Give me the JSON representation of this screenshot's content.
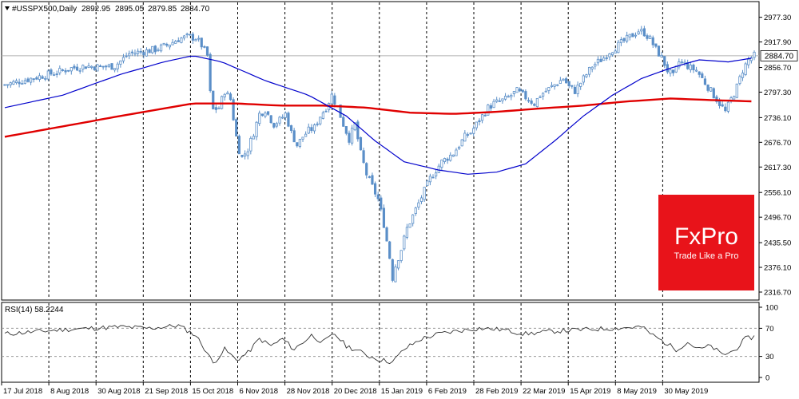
{
  "chart_data": [
    {
      "type": "candlestick",
      "header": {
        "symbol": "#USSPX500,Daily",
        "open": "2892.95",
        "high": "2895.05",
        "low": "2879.85",
        "close": "2884.70"
      },
      "current_price_label": "2884.70",
      "ylim": [
        2316.7,
        2997.7
      ],
      "yticks": [
        "2977.30",
        "2917.90",
        "2856.70",
        "2797.30",
        "2736.10",
        "2676.70",
        "2617.30",
        "2556.10",
        "2496.70",
        "2435.50",
        "2376.10",
        "2316.70"
      ],
      "xticks": [
        "17 Jul 2018",
        "8 Aug 2018",
        "30 Aug 2018",
        "21 Sep 2018",
        "15 Oct 2018",
        "6 Nov 2018",
        "28 Nov 2018",
        "20 Dec 2018",
        "15 Jan 2019",
        "6 Feb 2019",
        "28 Feb 2019",
        "22 Mar 2019",
        "15 Apr 2019",
        "8 May 2019",
        "30 May 2019"
      ],
      "close_path": [
        [
          0,
          2815
        ],
        [
          6,
          2825
        ],
        [
          12,
          2835
        ],
        [
          18,
          2845
        ],
        [
          23,
          2855
        ],
        [
          28,
          2860
        ],
        [
          33,
          2858
        ],
        [
          38,
          2860
        ],
        [
          43,
          2890
        ],
        [
          48,
          2895
        ],
        [
          52,
          2900
        ],
        [
          56,
          2910
        ],
        [
          60,
          2925
        ],
        [
          63,
          2930
        ],
        [
          66,
          2928
        ],
        [
          68,
          2910
        ],
        [
          70,
          2885
        ],
        [
          71,
          2795
        ],
        [
          72,
          2755
        ],
        [
          74,
          2760
        ],
        [
          76,
          2800
        ],
        [
          78,
          2780
        ],
        [
          80,
          2690
        ],
        [
          81,
          2658
        ],
        [
          82,
          2640
        ],
        [
          84,
          2660
        ],
        [
          86,
          2700
        ],
        [
          88,
          2745
        ],
        [
          90,
          2755
        ],
        [
          93,
          2720
        ],
        [
          95,
          2730
        ],
        [
          97,
          2745
        ],
        [
          99,
          2700
        ],
        [
          101,
          2670
        ],
        [
          103,
          2690
        ],
        [
          105,
          2705
        ],
        [
          107,
          2712
        ],
        [
          109,
          2740
        ],
        [
          111,
          2760
        ],
        [
          113,
          2790
        ],
        [
          115,
          2760
        ],
        [
          117,
          2720
        ],
        [
          119,
          2685
        ],
        [
          121,
          2720
        ],
        [
          123,
          2650
        ],
        [
          125,
          2600
        ],
        [
          127,
          2570
        ],
        [
          129,
          2540
        ],
        [
          131,
          2480
        ],
        [
          132,
          2440
        ],
        [
          133,
          2400
        ],
        [
          134,
          2351
        ],
        [
          135,
          2380
        ],
        [
          137,
          2420
        ],
        [
          139,
          2470
        ],
        [
          141,
          2500
        ],
        [
          143,
          2530
        ],
        [
          145,
          2560
        ],
        [
          147,
          2590
        ],
        [
          149,
          2610
        ],
        [
          151,
          2630
        ],
        [
          153,
          2640
        ],
        [
          155,
          2650
        ],
        [
          157,
          2670
        ],
        [
          159,
          2690
        ],
        [
          161,
          2700
        ],
        [
          163,
          2720
        ],
        [
          165,
          2740
        ],
        [
          167,
          2760
        ],
        [
          169,
          2770
        ],
        [
          171,
          2775
        ],
        [
          173,
          2780
        ],
        [
          175,
          2790
        ],
        [
          177,
          2800
        ],
        [
          179,
          2790
        ],
        [
          181,
          2780
        ],
        [
          183,
          2770
        ],
        [
          185,
          2790
        ],
        [
          187,
          2800
        ],
        [
          189,
          2810
        ],
        [
          191,
          2820
        ],
        [
          193,
          2830
        ],
        [
          195,
          2810
        ],
        [
          197,
          2800
        ],
        [
          199,
          2820
        ],
        [
          201,
          2840
        ],
        [
          203,
          2860
        ],
        [
          205,
          2870
        ],
        [
          207,
          2880
        ],
        [
          209,
          2895
        ],
        [
          211,
          2905
        ],
        [
          213,
          2915
        ],
        [
          215,
          2925
        ],
        [
          217,
          2935
        ],
        [
          219,
          2945
        ],
        [
          221,
          2940
        ],
        [
          223,
          2925
        ],
        [
          225,
          2900
        ],
        [
          227,
          2880
        ],
        [
          229,
          2850
        ],
        [
          231,
          2835
        ],
        [
          233,
          2870
        ],
        [
          235,
          2865
        ],
        [
          237,
          2855
        ],
        [
          239,
          2850
        ],
        [
          241,
          2830
        ],
        [
          243,
          2810
        ],
        [
          245,
          2790
        ],
        [
          247,
          2770
        ],
        [
          249,
          2750
        ],
        [
          251,
          2780
        ],
        [
          253,
          2810
        ],
        [
          255,
          2850
        ],
        [
          257,
          2875
        ],
        [
          259,
          2885
        ]
      ],
      "ma_blue": [
        [
          0,
          2760
        ],
        [
          20,
          2790
        ],
        [
          40,
          2840
        ],
        [
          55,
          2870
        ],
        [
          65,
          2885
        ],
        [
          75,
          2870
        ],
        [
          90,
          2825
        ],
        [
          105,
          2790
        ],
        [
          118,
          2740
        ],
        [
          128,
          2680
        ],
        [
          138,
          2630
        ],
        [
          150,
          2610
        ],
        [
          160,
          2600
        ],
        [
          170,
          2605
        ],
        [
          180,
          2625
        ],
        [
          190,
          2680
        ],
        [
          200,
          2740
        ],
        [
          210,
          2790
        ],
        [
          220,
          2830
        ],
        [
          230,
          2855
        ],
        [
          240,
          2875
        ],
        [
          250,
          2870
        ],
        [
          259,
          2880
        ]
      ],
      "ma_red": [
        [
          0,
          2690
        ],
        [
          20,
          2715
        ],
        [
          40,
          2740
        ],
        [
          55,
          2758
        ],
        [
          65,
          2770
        ],
        [
          80,
          2770
        ],
        [
          95,
          2765
        ],
        [
          110,
          2765
        ],
        [
          125,
          2760
        ],
        [
          140,
          2748
        ],
        [
          155,
          2745
        ],
        [
          170,
          2750
        ],
        [
          185,
          2758
        ],
        [
          200,
          2765
        ],
        [
          215,
          2775
        ],
        [
          230,
          2782
        ],
        [
          245,
          2778
        ],
        [
          259,
          2775
        ]
      ]
    },
    {
      "type": "line",
      "label": "RSI(14) 58.2244",
      "ylim": [
        0,
        100
      ],
      "yticks": [
        "100",
        "70",
        "30",
        "0"
      ],
      "levels": [
        70,
        30
      ],
      "values": [
        [
          0,
          62
        ],
        [
          10,
          65
        ],
        [
          20,
          68
        ],
        [
          30,
          70
        ],
        [
          40,
          72
        ],
        [
          50,
          70
        ],
        [
          60,
          74
        ],
        [
          66,
          60
        ],
        [
          70,
          35
        ],
        [
          72,
          20
        ],
        [
          76,
          40
        ],
        [
          80,
          25
        ],
        [
          84,
          35
        ],
        [
          88,
          55
        ],
        [
          92,
          45
        ],
        [
          96,
          55
        ],
        [
          100,
          40
        ],
        [
          106,
          60
        ],
        [
          110,
          50
        ],
        [
          114,
          62
        ],
        [
          118,
          45
        ],
        [
          122,
          38
        ],
        [
          126,
          30
        ],
        [
          130,
          25
        ],
        [
          134,
          22
        ],
        [
          138,
          40
        ],
        [
          144,
          55
        ],
        [
          150,
          62
        ],
        [
          156,
          66
        ],
        [
          164,
          70
        ],
        [
          172,
          68
        ],
        [
          180,
          62
        ],
        [
          190,
          66
        ],
        [
          200,
          68
        ],
        [
          210,
          70
        ],
        [
          220,
          72
        ],
        [
          224,
          60
        ],
        [
          228,
          50
        ],
        [
          232,
          40
        ],
        [
          236,
          50
        ],
        [
          240,
          40
        ],
        [
          244,
          45
        ],
        [
          248,
          32
        ],
        [
          252,
          38
        ],
        [
          256,
          55
        ],
        [
          259,
          58
        ]
      ]
    }
  ],
  "logo": {
    "brand": "FxPro",
    "tagline": "Trade Like a Pro"
  }
}
